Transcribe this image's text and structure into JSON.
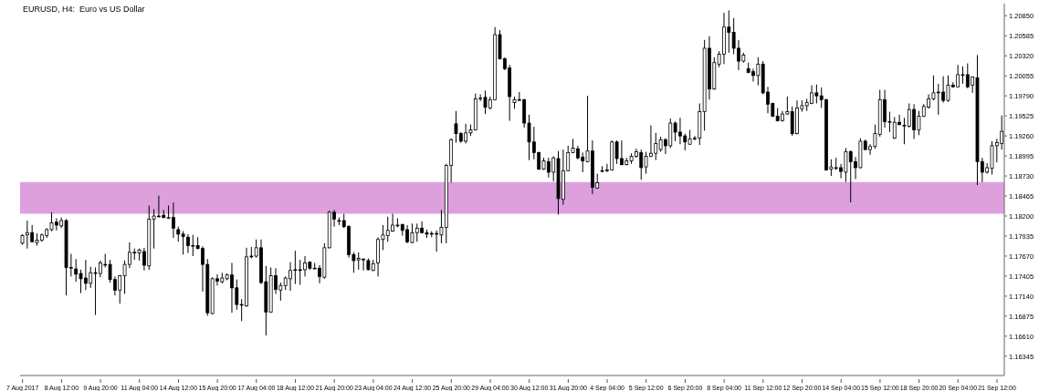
{
  "chart_data": {
    "type": "candlestick",
    "title": "EURUSD, H4:  Euro vs US Dollar",
    "color": "#000000",
    "categories": [
      "7 Aug 2017",
      null,
      null,
      null,
      null,
      null,
      null,
      null,
      "8 Aug 12:00",
      null,
      null,
      null,
      null,
      null,
      null,
      null,
      "9 Aug 20:00",
      null,
      null,
      null,
      null,
      null,
      null,
      null,
      "11 Aug 04:00",
      null,
      null,
      null,
      null,
      null,
      null,
      null,
      "14 Aug 12:00",
      null,
      null,
      null,
      null,
      null,
      null,
      null,
      "15 Aug 20:00",
      null,
      null,
      null,
      null,
      null,
      null,
      null,
      "17 Aug 04:00",
      null,
      null,
      null,
      null,
      null,
      null,
      null,
      "18 Aug 12:00",
      null,
      null,
      null,
      null,
      null,
      null,
      null,
      "21 Aug 20:00",
      null,
      null,
      null,
      null,
      null,
      null,
      null,
      "23 Aug 04:00",
      null,
      null,
      null,
      null,
      null,
      null,
      null,
      "24 Aug 12:00",
      null,
      null,
      null,
      null,
      null,
      null,
      null,
      "25 Aug 20:00",
      null,
      null,
      null,
      null,
      null,
      null,
      null,
      "29 Aug 04:00",
      null,
      null,
      null,
      null,
      null,
      null,
      null,
      "30 Aug 12:00",
      null,
      null,
      null,
      null,
      null,
      null,
      null,
      "31 Aug 20:00",
      null,
      null,
      null,
      null,
      null,
      null,
      null,
      "4 Sep 04:00",
      null,
      null,
      null,
      null,
      null,
      null,
      null,
      "5 Sep 12:00",
      null,
      null,
      null,
      null,
      null,
      null,
      null,
      "6 Sep 20:00",
      null,
      null,
      null,
      null,
      null,
      null,
      null,
      "8 Sep 04:00",
      null,
      null,
      null,
      null,
      null,
      null,
      null,
      "11 Sep 12:00",
      null,
      null,
      null,
      null,
      null,
      null,
      null,
      "12 Sep 20:00",
      null,
      null,
      null,
      null,
      null,
      null,
      null,
      "14 Sep 04:00",
      null,
      null,
      null,
      null,
      null,
      null,
      null,
      "15 Sep 12:00",
      null,
      null,
      null,
      null,
      null,
      null,
      null,
      "18 Sep 20:00",
      null,
      null,
      null,
      null,
      null,
      null,
      null,
      "20 Sep 04:00",
      null,
      null,
      null,
      null,
      null,
      null,
      null,
      "21 Sep 12:00",
      null
    ],
    "ohlc": [
      [
        1.1784,
        1.1796,
        1.1782,
        1.1794
      ],
      [
        1.1795,
        1.1814,
        1.1777,
        1.1798
      ],
      [
        1.1798,
        1.1808,
        1.1785,
        1.1786
      ],
      [
        1.1785,
        1.1797,
        1.1781,
        1.1788
      ],
      [
        1.1788,
        1.1797,
        1.1786,
        1.1795
      ],
      [
        1.1794,
        1.1804,
        1.1791,
        1.1802
      ],
      [
        1.1802,
        1.1825,
        1.18,
        1.1811
      ],
      [
        1.1812,
        1.1817,
        1.1801,
        1.1808
      ],
      [
        1.1807,
        1.1818,
        1.1804,
        1.1814
      ],
      [
        1.1814,
        1.1816,
        1.1715,
        1.1752
      ],
      [
        1.1752,
        1.177,
        1.174,
        1.1752
      ],
      [
        1.175,
        1.1763,
        1.1733,
        1.1743
      ],
      [
        1.1744,
        1.1749,
        1.1718,
        1.1737
      ],
      [
        1.1738,
        1.1762,
        1.1722,
        1.1731
      ],
      [
        1.1731,
        1.1753,
        1.1725,
        1.1745
      ],
      [
        1.1745,
        1.1752,
        1.1689,
        1.1745
      ],
      [
        1.1744,
        1.1761,
        1.1739,
        1.1758
      ],
      [
        1.1756,
        1.177,
        1.1752,
        1.1756
      ],
      [
        1.1756,
        1.1762,
        1.1732,
        1.1736
      ],
      [
        1.1736,
        1.174,
        1.1715,
        1.1722
      ],
      [
        1.1722,
        1.1742,
        1.1704,
        1.1741
      ],
      [
        1.1741,
        1.1761,
        1.1717,
        1.1756
      ],
      [
        1.1756,
        1.1785,
        1.1751,
        1.1772
      ],
      [
        1.1772,
        1.1777,
        1.1762,
        1.1772
      ],
      [
        1.1771,
        1.1777,
        1.1761,
        1.1775
      ],
      [
        1.1773,
        1.1778,
        1.1748,
        1.1755
      ],
      [
        1.1754,
        1.1834,
        1.1749,
        1.1816
      ],
      [
        1.1816,
        1.1829,
        1.1777,
        1.182
      ],
      [
        1.182,
        1.1847,
        1.1818,
        1.182
      ],
      [
        1.1821,
        1.1828,
        1.1817,
        1.1818
      ],
      [
        1.1818,
        1.1834,
        1.1816,
        1.1818
      ],
      [
        1.1818,
        1.1838,
        1.1791,
        1.1804
      ],
      [
        1.1802,
        1.1806,
        1.1786,
        1.1796
      ],
      [
        1.1796,
        1.18,
        1.1769,
        1.1793
      ],
      [
        1.1792,
        1.1796,
        1.1771,
        1.1781
      ],
      [
        1.1781,
        1.1795,
        1.1767,
        1.1781
      ],
      [
        1.1781,
        1.1792,
        1.1776,
        1.1777
      ],
      [
        1.1777,
        1.178,
        1.172,
        1.1756
      ],
      [
        1.1756,
        1.1763,
        1.1688,
        1.1692
      ],
      [
        1.1691,
        1.1739,
        1.169,
        1.1737
      ],
      [
        1.1737,
        1.1743,
        1.1728,
        1.1734
      ],
      [
        1.1733,
        1.1745,
        1.1731,
        1.1738
      ],
      [
        1.1737,
        1.1744,
        1.1735,
        1.1742
      ],
      [
        1.1742,
        1.1758,
        1.1692,
        1.1725
      ],
      [
        1.1725,
        1.1736,
        1.1696,
        1.1703
      ],
      [
        1.1703,
        1.171,
        1.1681,
        1.1703
      ],
      [
        1.1701,
        1.1778,
        1.17,
        1.1766
      ],
      [
        1.1767,
        1.1779,
        1.1764,
        1.1767
      ],
      [
        1.1767,
        1.1789,
        1.1765,
        1.1778
      ],
      [
        1.1778,
        1.1789,
        1.173,
        1.1732
      ],
      [
        1.1733,
        1.1754,
        1.1662,
        1.1693
      ],
      [
        1.1693,
        1.1752,
        1.1692,
        1.1741
      ],
      [
        1.1741,
        1.1751,
        1.1717,
        1.1723
      ],
      [
        1.1722,
        1.1732,
        1.1708,
        1.1728
      ],
      [
        1.1728,
        1.174,
        1.1722,
        1.1738
      ],
      [
        1.1737,
        1.1759,
        1.1721,
        1.1748
      ],
      [
        1.1749,
        1.1774,
        1.173,
        1.1749
      ],
      [
        1.1749,
        1.1762,
        1.1729,
        1.1749
      ],
      [
        1.1749,
        1.1767,
        1.174,
        1.1758
      ],
      [
        1.1759,
        1.176,
        1.1749,
        1.1751
      ],
      [
        1.1751,
        1.1758,
        1.175,
        1.1751
      ],
      [
        1.1751,
        1.1755,
        1.1731,
        1.174
      ],
      [
        1.1739,
        1.1784,
        1.1737,
        1.1778
      ],
      [
        1.1778,
        1.1827,
        1.1777,
        1.1825
      ],
      [
        1.1825,
        1.1828,
        1.1806,
        1.1816
      ],
      [
        1.1814,
        1.1818,
        1.1808,
        1.1814
      ],
      [
        1.1814,
        1.1823,
        1.1804,
        1.1806
      ],
      [
        1.1806,
        1.1808,
        1.1765,
        1.1769
      ],
      [
        1.1769,
        1.1772,
        1.1745,
        1.1761
      ],
      [
        1.1762,
        1.1772,
        1.1749,
        1.1764
      ],
      [
        1.1763,
        1.1764,
        1.1748,
        1.1762
      ],
      [
        1.1761,
        1.1764,
        1.1748,
        1.1749
      ],
      [
        1.1748,
        1.1762,
        1.1747,
        1.1757
      ],
      [
        1.1758,
        1.1792,
        1.174,
        1.1789
      ],
      [
        1.1789,
        1.1808,
        1.1775,
        1.1795
      ],
      [
        1.1794,
        1.1819,
        1.1786,
        1.1801
      ],
      [
        1.18,
        1.1823,
        1.1799,
        1.1808
      ],
      [
        1.1808,
        1.1817,
        1.1805,
        1.1808
      ],
      [
        1.1809,
        1.1809,
        1.1794,
        1.1801
      ],
      [
        1.1802,
        1.1808,
        1.1784,
        1.1786
      ],
      [
        1.1785,
        1.181,
        1.1784,
        1.1798
      ],
      [
        1.1798,
        1.181,
        1.1786,
        1.1804
      ],
      [
        1.1804,
        1.1813,
        1.1797,
        1.1798
      ],
      [
        1.1798,
        1.1802,
        1.1791,
        1.1796
      ],
      [
        1.1797,
        1.18,
        1.1792,
        1.1797
      ],
      [
        1.1797,
        1.1801,
        1.1773,
        1.1797
      ],
      [
        1.1795,
        1.1828,
        1.1784,
        1.1805
      ],
      [
        1.1805,
        1.1889,
        1.1784,
        1.1887
      ],
      [
        1.1887,
        1.1923,
        1.1864,
        1.1921
      ],
      [
        1.1942,
        1.1959,
        1.1917,
        1.1929
      ],
      [
        1.1929,
        1.1931,
        1.1917,
        1.1919
      ],
      [
        1.1919,
        1.1942,
        1.1916,
        1.193
      ],
      [
        1.193,
        1.1941,
        1.1926,
        1.1934
      ],
      [
        1.1934,
        1.1982,
        1.1933,
        1.1975
      ],
      [
        1.1976,
        1.1981,
        1.1972,
        1.1976
      ],
      [
        1.1977,
        1.1986,
        1.1955,
        1.1964
      ],
      [
        1.1963,
        1.1978,
        1.1961,
        1.1974
      ],
      [
        1.1974,
        1.207,
        1.1973,
        1.206
      ],
      [
        1.206,
        1.2066,
        1.2027,
        1.2028
      ],
      [
        1.2028,
        1.203,
        1.2013,
        1.2015
      ],
      [
        1.2016,
        1.202,
        1.1946,
        1.1978
      ],
      [
        1.197,
        1.1978,
        1.1962,
        1.1974
      ],
      [
        1.1974,
        1.1984,
        1.1972,
        1.1974
      ],
      [
        1.1974,
        1.1975,
        1.1937,
        1.1943
      ],
      [
        1.1943,
        1.1954,
        1.1894,
        1.1918
      ],
      [
        1.1918,
        1.1938,
        1.1895,
        1.1904
      ],
      [
        1.1904,
        1.1905,
        1.1881,
        1.1882
      ],
      [
        1.1882,
        1.1897,
        1.1881,
        1.1893
      ],
      [
        1.1892,
        1.1897,
        1.1871,
        1.1878
      ],
      [
        1.1878,
        1.1899,
        1.1866,
        1.1897
      ],
      [
        1.1896,
        1.1906,
        1.1822,
        1.1843
      ],
      [
        1.1842,
        1.1908,
        1.1835,
        1.188
      ],
      [
        1.188,
        1.1913,
        1.1879,
        1.1904
      ],
      [
        1.1904,
        1.1922,
        1.1903,
        1.191
      ],
      [
        1.1909,
        1.1913,
        1.1895,
        1.1897
      ],
      [
        1.1898,
        1.1904,
        1.1878,
        1.1893
      ],
      [
        1.1892,
        1.1979,
        1.1891,
        1.1906
      ],
      [
        1.1906,
        1.192,
        1.1849,
        1.1858
      ],
      [
        1.1857,
        1.1876,
        1.1856,
        1.1864
      ],
      [
        1.188,
        1.1886,
        1.1878,
        1.188
      ],
      [
        1.1881,
        1.1889,
        1.1878,
        1.1881
      ],
      [
        1.1881,
        1.192,
        1.188,
        1.1918
      ],
      [
        1.1918,
        1.192,
        1.1889,
        1.1896
      ],
      [
        1.1896,
        1.192,
        1.1887,
        1.1888
      ],
      [
        1.1888,
        1.1897,
        1.1887,
        1.1893
      ],
      [
        1.1893,
        1.1903,
        1.1889,
        1.1899
      ],
      [
        1.1899,
        1.1909,
        1.1897,
        1.1905
      ],
      [
        1.1904,
        1.1908,
        1.1868,
        1.1884
      ],
      [
        1.1885,
        1.1905,
        1.1876,
        1.1899
      ],
      [
        1.1899,
        1.194,
        1.1898,
        1.1903
      ],
      [
        1.1903,
        1.193,
        1.1894,
        1.1916
      ],
      [
        1.1908,
        1.1925,
        1.1905,
        1.1921
      ],
      [
        1.1921,
        1.1923,
        1.1902,
        1.1913
      ],
      [
        1.1913,
        1.1949,
        1.191,
        1.1943
      ],
      [
        1.1943,
        1.1945,
        1.1919,
        1.1931
      ],
      [
        1.1931,
        1.195,
        1.1915,
        1.1926
      ],
      [
        1.1926,
        1.1929,
        1.1907,
        1.1918
      ],
      [
        1.1915,
        1.1934,
        1.1914,
        1.1922
      ],
      [
        1.1923,
        1.1926,
        1.192,
        1.1923
      ],
      [
        1.1923,
        1.1969,
        1.1914,
        1.1958
      ],
      [
        1.1958,
        1.2053,
        1.1933,
        1.2042
      ],
      [
        1.2042,
        1.2058,
        1.1974,
        1.1988
      ],
      [
        1.1988,
        1.203,
        1.1987,
        1.2023
      ],
      [
        1.2021,
        1.2038,
        1.2017,
        1.2034
      ],
      [
        1.2034,
        1.2089,
        1.2021,
        1.207
      ],
      [
        1.207,
        1.2092,
        1.2036,
        1.2063
      ],
      [
        1.2063,
        1.2082,
        1.2034,
        1.2042
      ],
      [
        1.2042,
        1.2053,
        1.2013,
        1.2025
      ],
      [
        1.2025,
        1.2036,
        1.2023,
        1.2033
      ],
      [
        1.2015,
        1.2023,
        1.2009,
        1.201
      ],
      [
        1.2011,
        1.2015,
        1.1998,
        1.2006
      ],
      [
        1.2006,
        1.203,
        1.1993,
        1.2021
      ],
      [
        1.2021,
        1.2025,
        1.1981,
        1.1983
      ],
      [
        1.1984,
        1.1991,
        1.1956,
        1.1968
      ],
      [
        1.1969,
        1.197,
        1.1951,
        1.1952
      ],
      [
        1.1952,
        1.1963,
        1.1945,
        1.1946
      ],
      [
        1.1946,
        1.1959,
        1.1945,
        1.1955
      ],
      [
        1.1955,
        1.1978,
        1.1954,
        1.1958
      ],
      [
        1.1958,
        1.1965,
        1.1926,
        1.1929
      ],
      [
        1.1929,
        1.1973,
        1.1928,
        1.1963
      ],
      [
        1.1962,
        1.1973,
        1.1958,
        1.1966
      ],
      [
        1.1966,
        1.1975,
        1.1959,
        1.197
      ],
      [
        1.1969,
        1.1993,
        1.1968,
        1.1983
      ],
      [
        1.1983,
        1.1994,
        1.1969,
        1.1979
      ],
      [
        1.1979,
        1.199,
        1.1963,
        1.1974
      ],
      [
        1.1974,
        1.1975,
        1.188,
        1.1881
      ],
      [
        1.1882,
        1.1895,
        1.1873,
        1.1885
      ],
      [
        1.1884,
        1.1897,
        1.1881,
        1.1884
      ],
      [
        1.1884,
        1.1889,
        1.187,
        1.1879
      ],
      [
        1.1878,
        1.191,
        1.1865,
        1.1905
      ],
      [
        1.1905,
        1.1907,
        1.1838,
        1.1892
      ],
      [
        1.1892,
        1.1898,
        1.1869,
        1.1884
      ],
      [
        1.1884,
        1.1923,
        1.1883,
        1.1919
      ],
      [
        1.1919,
        1.1921,
        1.1907,
        1.1908
      ],
      [
        1.1908,
        1.1915,
        1.1901,
        1.1912
      ],
      [
        1.1912,
        1.1941,
        1.1909,
        1.1929
      ],
      [
        1.1928,
        1.1987,
        1.1925,
        1.1974
      ],
      [
        1.1974,
        1.1987,
        1.1937,
        1.1945
      ],
      [
        1.1945,
        1.1958,
        1.1931,
        1.1945
      ],
      [
        1.1923,
        1.1951,
        1.1922,
        1.1944
      ],
      [
        1.1944,
        1.1954,
        1.194,
        1.1941
      ],
      [
        1.194,
        1.195,
        1.1915,
        1.194
      ],
      [
        1.1939,
        1.1969,
        1.1937,
        1.1961
      ],
      [
        1.1961,
        1.1968,
        1.1922,
        1.1934
      ],
      [
        1.1934,
        1.1959,
        1.1927,
        1.1952
      ],
      [
        1.1952,
        1.1968,
        1.1951,
        1.1965
      ],
      [
        1.1964,
        1.1981,
        1.1962,
        1.1975
      ],
      [
        1.1975,
        1.2006,
        1.1973,
        1.1983
      ],
      [
        1.1984,
        1.1995,
        1.1954,
        1.1984
      ],
      [
        1.1984,
        1.2005,
        1.197,
        1.1973
      ],
      [
        1.1973,
        1.2006,
        1.1971,
        1.1993
      ],
      [
        1.1993,
        1.1997,
        1.199,
        1.1991
      ],
      [
        1.1991,
        1.202,
        1.199,
        1.2007
      ],
      [
        1.2007,
        1.2018,
        1.1995,
        1.2007
      ],
      [
        1.2007,
        1.2022,
        1.1989,
        1.1991
      ],
      [
        1.1993,
        1.2005,
        1.1983,
        1.2004
      ],
      [
        1.2003,
        1.2033,
        1.1861,
        1.1892
      ],
      [
        1.1892,
        1.1897,
        1.1865,
        1.1878
      ],
      [
        1.1878,
        1.189,
        1.1876,
        1.1884
      ],
      [
        1.1883,
        1.1919,
        1.1875,
        1.1913
      ],
      [
        1.1913,
        1.1922,
        1.1891,
        1.1917
      ],
      [
        1.1916,
        1.1953,
        1.1908,
        1.1932
      ]
    ],
    "ylim": [
      1.1609,
      1.2101
    ],
    "yticks": [
      {
        "value": 1.2085,
        "label": "1.20850"
      },
      1.20585,
      {
        "value": 1.2032,
        "label": "1.20320"
      },
      1.20055,
      {
        "value": 1.1979,
        "label": "1.19790"
      },
      1.19525,
      {
        "value": 1.1926,
        "label": "1.19260"
      },
      1.18995,
      {
        "value": 1.1873,
        "label": "1.18730"
      },
      1.18465,
      {
        "value": 1.182,
        "label": "1.18200"
      },
      1.17935,
      {
        "value": 1.1767,
        "label": "1.17670"
      },
      1.17405,
      {
        "value": 1.1714,
        "label": "1.17140"
      },
      1.16875,
      {
        "value": 1.1661,
        "label": "1.16610"
      },
      1.16345
    ],
    "bands": [
      {
        "axis": "y",
        "from": 1.1823,
        "to": 1.1865,
        "color": "#dda0dd"
      }
    ]
  }
}
